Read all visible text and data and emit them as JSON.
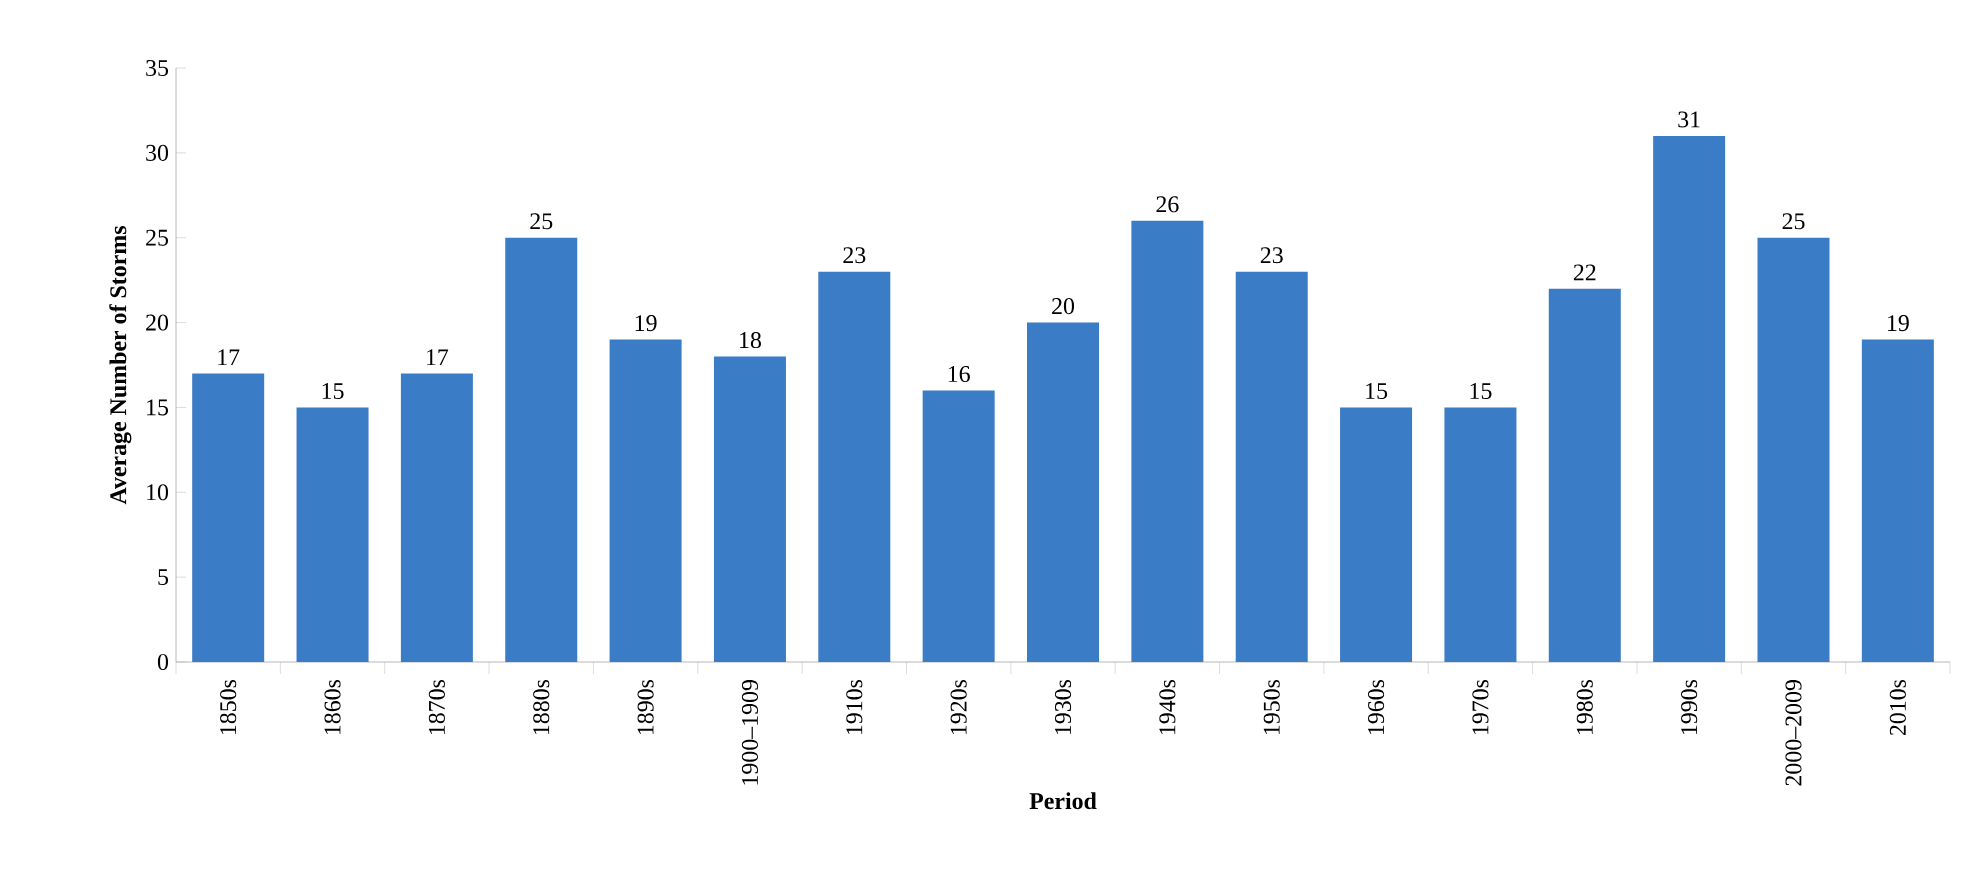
{
  "chart_data": {
    "type": "bar",
    "xlabel": "Period",
    "ylabel": "Average Number of Storms",
    "categories": [
      "1850s",
      "1860s",
      "1870s",
      "1880s",
      "1890s",
      "1900–1909",
      "1910s",
      "1920s",
      "1930s",
      "1940s",
      "1950s",
      "1960s",
      "1970s",
      "1980s",
      "1990s",
      "2000–2009",
      "2010s"
    ],
    "values": [
      17,
      15,
      17,
      25,
      19,
      18,
      23,
      16,
      20,
      26,
      23,
      15,
      15,
      22,
      31,
      25,
      19
    ],
    "color": "#3b7cc6",
    "ylim": [
      0,
      35
    ],
    "yticks": [
      0,
      5,
      10,
      15,
      20,
      25,
      30,
      35
    ],
    "data_labels": true
  }
}
